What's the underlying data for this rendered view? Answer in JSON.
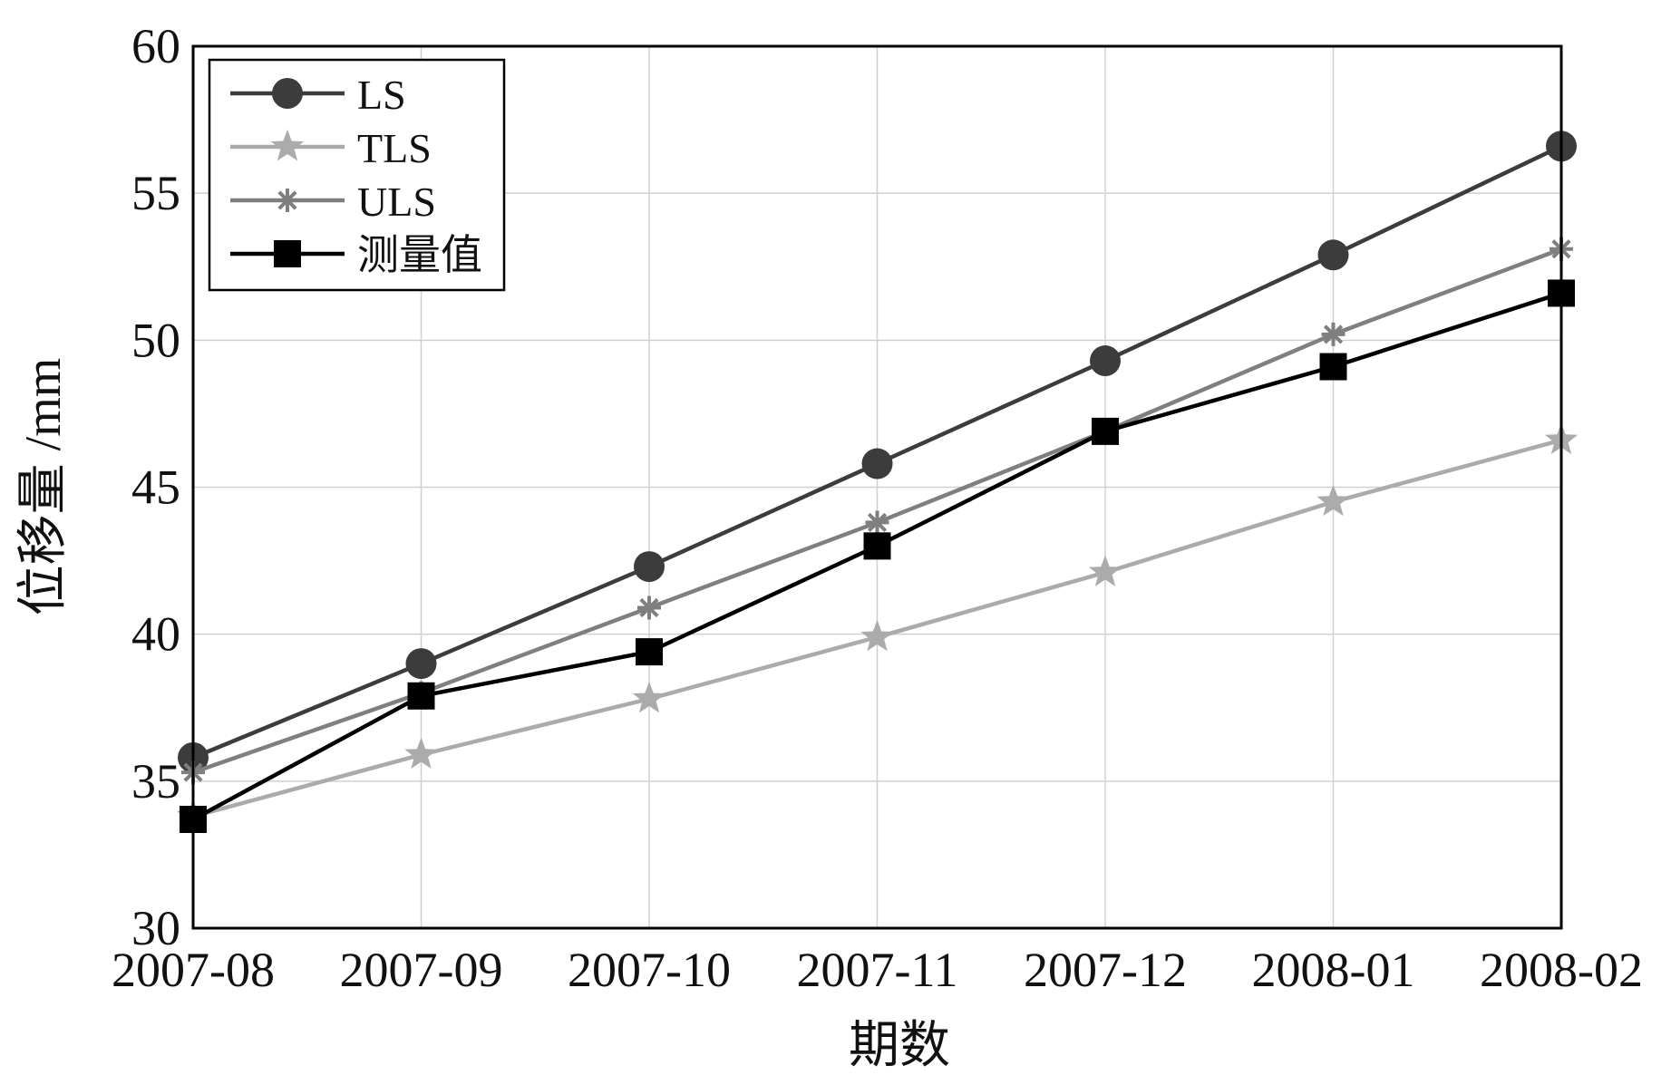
{
  "chart_data": {
    "type": "line",
    "title": "",
    "xlabel": "期数",
    "ylabel": "位移量 /mm",
    "categories": [
      "2007-08",
      "2007-09",
      "2007-10",
      "2007-11",
      "2007-12",
      "2008-01",
      "2008-02"
    ],
    "ylim": [
      30,
      60
    ],
    "yticks": [
      30,
      35,
      40,
      45,
      50,
      55,
      60
    ],
    "grid": true,
    "legend_position": "top-left",
    "series": [
      {
        "name": "LS",
        "marker": "circle",
        "color": "#3c3c3c",
        "values": [
          35.8,
          39.0,
          42.3,
          45.8,
          49.3,
          52.9,
          56.6
        ]
      },
      {
        "name": "TLS",
        "marker": "star",
        "color": "#ababab",
        "values": [
          33.8,
          35.9,
          37.8,
          39.9,
          42.1,
          44.5,
          46.6
        ]
      },
      {
        "name": "ULS",
        "marker": "asterisk",
        "color": "#7f7f7f",
        "values": [
          35.3,
          38.0,
          40.9,
          43.8,
          46.9,
          50.2,
          53.1
        ]
      },
      {
        "name": "测量值",
        "marker": "square",
        "color": "#000000",
        "values": [
          33.7,
          37.9,
          39.4,
          43.0,
          46.9,
          49.1,
          51.6
        ]
      }
    ]
  }
}
